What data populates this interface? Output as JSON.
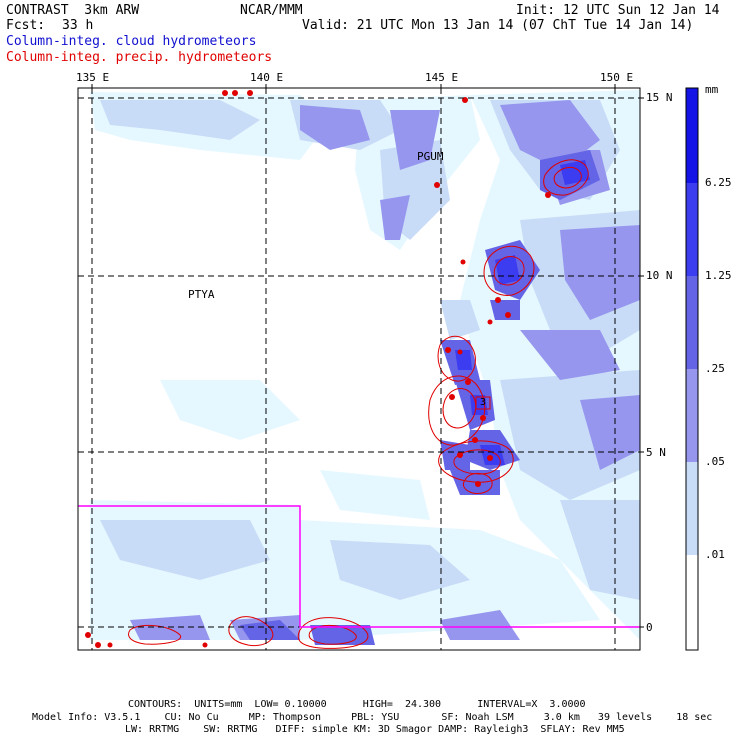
{
  "header": {
    "model_name": "CONTRAST  3km ARW",
    "center": "NCAR/MMM",
    "init": "Init: 12 UTC Sun 12 Jan 14",
    "fcst_label": "Fcst:",
    "fcst_value": "33 h",
    "valid": "Valid: 21 UTC Mon 13 Jan 14 (07 ChT Tue 14 Jan 14)",
    "legend_cloud": "Column-integ. cloud hydrometeors",
    "legend_precip": "Column-integ. precip. hydrometeors"
  },
  "map": {
    "lon_labels": [
      "135 E",
      "140 E",
      "145 E",
      "150 E"
    ],
    "lat_labels": [
      "15 N",
      "10 N",
      "5 N",
      "0"
    ],
    "place_labels": [
      "PGUM",
      "PTYA"
    ],
    "contour_marker": "3"
  },
  "colorbar": {
    "unit": "mm",
    "levels": [
      "6.25",
      "1.25",
      ".25",
      ".05",
      ".01"
    ],
    "colors": [
      "#1414e6",
      "#3c3cf0",
      "#6464e6",
      "#9696ee",
      "#c8dcf8",
      "#e6f8ff",
      "#ffffff"
    ]
  },
  "footer": {
    "contours": "CONTOURS:  UNITS=mm  LOW= 0.10000      HIGH=  24.300      INTERVAL=X  3.0000",
    "model_info_1": "Model Info: V3.5.1    CU: No Cu     MP: Thompson     PBL: YSU       SF: Noah LSM     3.0 km   39 levels    18 sec",
    "model_info_2": "LW: RRTMG    SW: RRTMG   DIFF: simple KM: 3D Smagor DAMP: Rayleigh3  SFLAY: Rev MM5"
  }
}
